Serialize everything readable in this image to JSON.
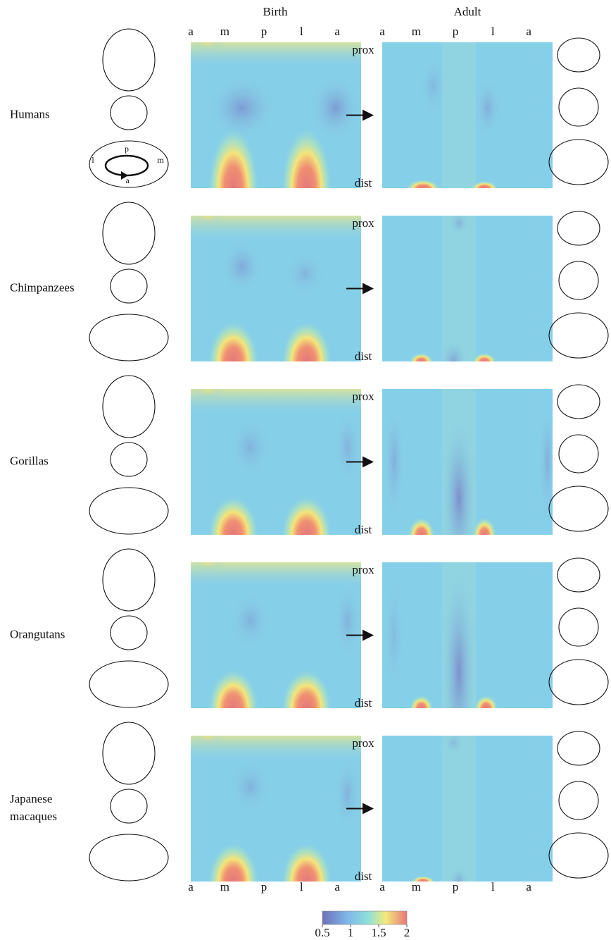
{
  "header": {
    "birth": "Birth",
    "adult": "Adult"
  },
  "axis_letters": [
    "a",
    "m",
    "p",
    "l",
    "a"
  ],
  "depth_labels": {
    "prox": "prox",
    "dist": "dist"
  },
  "rows": [
    {
      "label": [
        "Humans"
      ]
    },
    {
      "label": [
        "Chimpanzees"
      ]
    },
    {
      "label": [
        "Gorillas"
      ]
    },
    {
      "label": [
        "Orangutans"
      ]
    },
    {
      "label": [
        "Japanese",
        "macaques"
      ]
    }
  ],
  "section_labels": {
    "l": "l",
    "p": "p",
    "m": "m",
    "a": "a"
  },
  "colorbar": {
    "range": [
      0.5,
      2
    ],
    "ticks": [
      0.5,
      1,
      1.5,
      2
    ]
  }
}
